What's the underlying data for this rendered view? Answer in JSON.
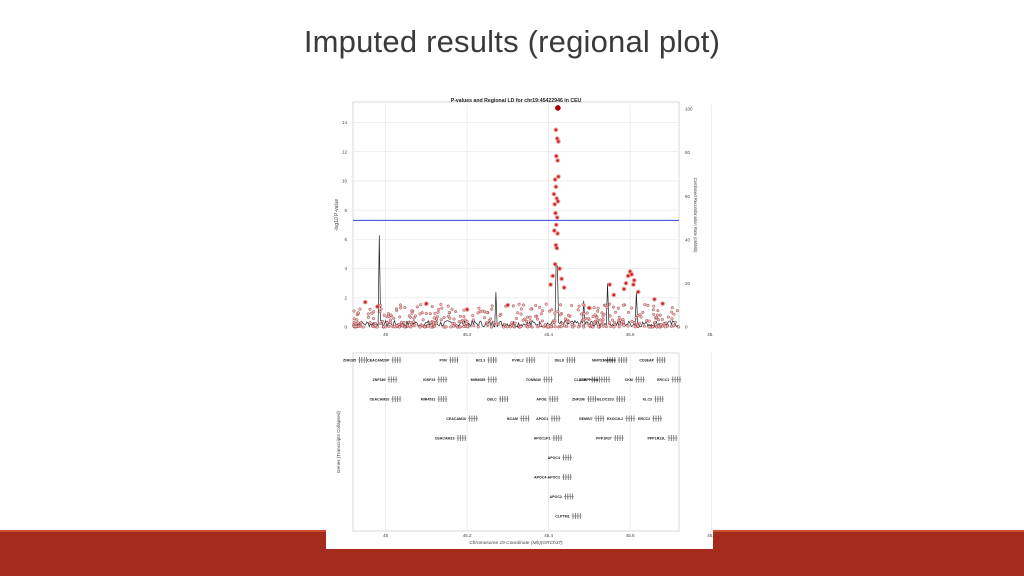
{
  "slide": {
    "title": "Imputed results (regional plot)",
    "band_color": "#a52b1d",
    "accent_color": "#c8512e"
  },
  "chart_data": {
    "type": "scatter",
    "title": "P-values and Regional LD for chr19:45422946 in CEU",
    "ylabel": "-log10 P-value",
    "y2label": "Combined Recombination Rate (cM/Mb)",
    "xlabel": "Chromosome 19 Coordinate (Mb)(GRCh37)",
    "xlim": [
      44.92,
      45.72
    ],
    "ylim": [
      0,
      15.2
    ],
    "y2lim": [
      0,
      100
    ],
    "x_ticks": [
      "45",
      "45.2",
      "45.4",
      "45.6",
      "45.8"
    ],
    "y_ticks": [
      "0",
      "2",
      "4",
      "6",
      "8",
      "10",
      "12",
      "14"
    ],
    "y2_ticks": [
      "0",
      "20",
      "40",
      "60",
      "80",
      "100"
    ],
    "significance_line": 7.3,
    "grid": true,
    "point_color": "#cc1d1d",
    "line_color": "#222222",
    "sigline_color": "#3344dd",
    "top_snp": {
      "x": 45.4229,
      "y": 15.0
    },
    "top_points": [
      {
        "x": 45.422,
        "y": 15.0
      },
      {
        "x": 45.418,
        "y": 13.5
      },
      {
        "x": 45.421,
        "y": 12.9
      },
      {
        "x": 45.424,
        "y": 12.7
      },
      {
        "x": 45.419,
        "y": 11.7
      },
      {
        "x": 45.422,
        "y": 11.4
      },
      {
        "x": 45.416,
        "y": 10.1
      },
      {
        "x": 45.424,
        "y": 10.3
      },
      {
        "x": 45.418,
        "y": 9.6
      },
      {
        "x": 45.413,
        "y": 9.1
      },
      {
        "x": 45.42,
        "y": 8.8
      },
      {
        "x": 45.415,
        "y": 8.4
      },
      {
        "x": 45.423,
        "y": 8.6
      },
      {
        "x": 45.417,
        "y": 7.8
      },
      {
        "x": 45.421,
        "y": 7.5
      },
      {
        "x": 45.419,
        "y": 7.0
      },
      {
        "x": 45.414,
        "y": 6.6
      },
      {
        "x": 45.422,
        "y": 6.4
      },
      {
        "x": 45.418,
        "y": 5.6
      },
      {
        "x": 45.42,
        "y": 5.4
      },
      {
        "x": 45.416,
        "y": 4.3
      },
      {
        "x": 45.427,
        "y": 4.0
      },
      {
        "x": 45.41,
        "y": 3.5
      },
      {
        "x": 45.432,
        "y": 3.3
      },
      {
        "x": 45.405,
        "y": 2.9
      },
      {
        "x": 45.438,
        "y": 2.7
      },
      {
        "x": 45.6,
        "y": 3.8
      },
      {
        "x": 45.604,
        "y": 3.6
      },
      {
        "x": 45.595,
        "y": 3.5
      },
      {
        "x": 45.61,
        "y": 3.2
      },
      {
        "x": 45.59,
        "y": 3.0
      },
      {
        "x": 45.608,
        "y": 2.9
      },
      {
        "x": 45.585,
        "y": 2.6
      },
      {
        "x": 45.62,
        "y": 2.4
      },
      {
        "x": 45.55,
        "y": 2.9
      },
      {
        "x": 45.56,
        "y": 2.2
      },
      {
        "x": 45.66,
        "y": 1.9
      },
      {
        "x": 45.68,
        "y": 1.6
      },
      {
        "x": 44.95,
        "y": 1.7
      },
      {
        "x": 44.98,
        "y": 1.4
      },
      {
        "x": 45.1,
        "y": 1.6
      },
      {
        "x": 45.2,
        "y": 1.2
      },
      {
        "x": 45.3,
        "y": 1.5
      },
      {
        "x": 45.5,
        "y": 1.3
      }
    ],
    "background_points_count": 420,
    "recomb_spikes": [
      {
        "x": 44.985,
        "rate": 42
      },
      {
        "x": 45.27,
        "rate": 16
      },
      {
        "x": 45.42,
        "rate": 28
      },
      {
        "x": 45.485,
        "rate": 12
      },
      {
        "x": 45.545,
        "rate": 20
      },
      {
        "x": 45.615,
        "rate": 16
      }
    ]
  },
  "genes": {
    "ylabel": "Genes (Transcripts Collapsed)",
    "rows": [
      [
        {
          "name": "ZNF285",
          "x": 44.9
        },
        {
          "name": "CEACAM20P",
          "x": 45.0
        },
        {
          "name": "PVR",
          "x": 45.15
        },
        {
          "name": "BCL3",
          "x": 45.25
        },
        {
          "name": "PVRL2",
          "x": 45.35
        },
        {
          "name": "DEL8",
          "x": 45.455
        },
        {
          "name": "NKPD1",
          "x": 45.56
        },
        {
          "name": "MARK4",
          "x": 45.59
        },
        {
          "name": "CD3EAP",
          "x": 45.69
        }
      ],
      [
        {
          "name": "ZNF180",
          "x": 44.99
        },
        {
          "name": "IGSF23",
          "x": 45.12
        },
        {
          "name": "MIR8085",
          "x": 45.25
        },
        {
          "name": "TOMM40",
          "x": 45.395
        },
        {
          "name": "CLASRP",
          "x": 45.52
        },
        {
          "name": "TRAPPC6A",
          "x": 45.545
        },
        {
          "name": "CKM",
          "x": 45.635
        },
        {
          "name": "ERCC1",
          "x": 45.73
        }
      ],
      [
        {
          "name": "CEACAM20",
          "x": 45.0
        },
        {
          "name": "MIR4531",
          "x": 45.12
        },
        {
          "name": "CBLC",
          "x": 45.28
        },
        {
          "name": "APOE",
          "x": 45.41
        },
        {
          "name": "ZNF296",
          "x": 45.51
        },
        {
          "name": "BLOC1S3",
          "x": 45.585
        },
        {
          "name": "KLC3",
          "x": 45.685
        }
      ],
      [
        {
          "name": "CEACAM16",
          "x": 45.2
        },
        {
          "name": "BCAM",
          "x": 45.335
        },
        {
          "name": "APOC1",
          "x": 45.415
        },
        {
          "name": "GEMIN7",
          "x": 45.53
        },
        {
          "name": "EXOC3L2",
          "x": 45.61
        },
        {
          "name": "ERCC2",
          "x": 45.68
        }
      ],
      [
        {
          "name": "CEACAM19",
          "x": 45.17
        },
        {
          "name": "APOC1P1",
          "x": 45.42
        },
        {
          "name": "PPP1R37",
          "x": 45.58
        },
        {
          "name": "PPP1R13L",
          "x": 45.72
        }
      ],
      [
        {
          "name": "APOC4",
          "x": 45.445
        }
      ],
      [
        {
          "name": "APOC4-APOC2",
          "x": 45.445
        }
      ],
      [
        {
          "name": "APOC2",
          "x": 45.45
        }
      ],
      [
        {
          "name": "CLPTM1",
          "x": 45.47
        }
      ]
    ]
  }
}
